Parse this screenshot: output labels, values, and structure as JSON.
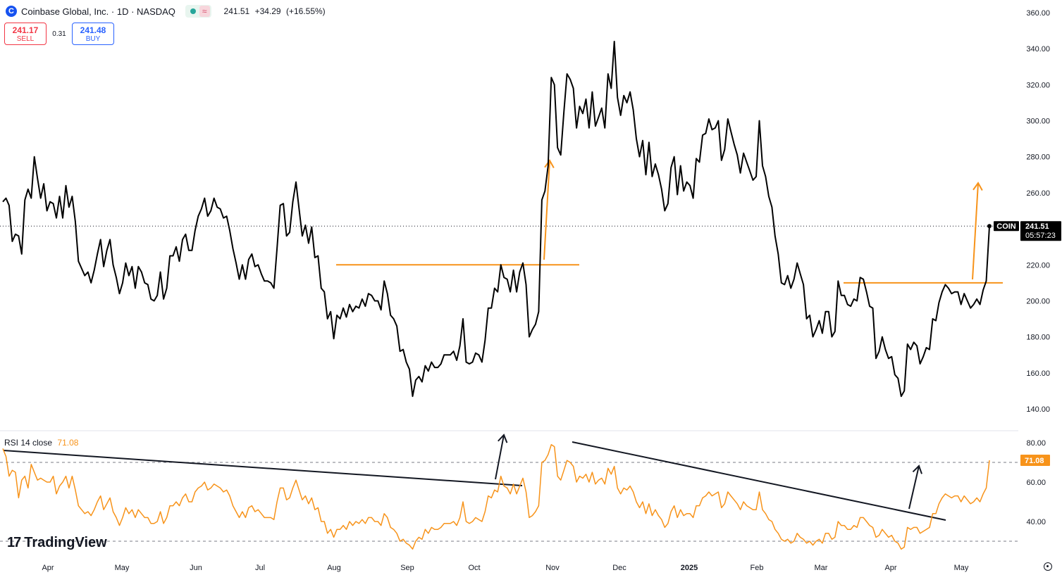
{
  "header": {
    "logo_letter": "C",
    "symbol_line": "Coinbase Global, Inc. · 1D · NASDAQ",
    "wave_glyph": "≈",
    "last": "241.51",
    "change": "+34.29",
    "change_pct": "(+16.55%)"
  },
  "trade": {
    "sell_price": "241.17",
    "sell_label": "SELL",
    "spread": "0.31",
    "buy_price": "241.48",
    "buy_label": "BUY"
  },
  "rsi_label": {
    "name": "RSI 14 close",
    "value": "71.08"
  },
  "brand": {
    "name": "TradingView",
    "mark": "17"
  },
  "colors": {
    "price_line": "#000000",
    "rsi_line": "#f7931a",
    "annotation": "#f7931a",
    "badge": "#000000"
  },
  "chart_data": [
    {
      "type": "line",
      "title": "Coinbase Global, Inc. · 1D · NASDAQ",
      "x_tick_labels": [
        "Apr",
        "May",
        "Jun",
        "Jul",
        "Aug",
        "Sep",
        "Oct",
        "Nov",
        "Dec",
        "2025",
        "Feb",
        "Mar",
        "Apr",
        "May"
      ],
      "y_ticks": [
        140,
        160,
        180,
        200,
        220,
        240,
        260,
        280,
        300,
        320,
        340,
        360
      ],
      "ylim": [
        132,
        364
      ],
      "series": [
        {
          "name": "COIN",
          "last_value": 241.51,
          "last_label": "241.51",
          "countdown": "05:57:23",
          "values": [
            255,
            257,
            253,
            233,
            237,
            236,
            226,
            256,
            262,
            257,
            280,
            268,
            257,
            265,
            250,
            255,
            254,
            246,
            258,
            246,
            264,
            252,
            258,
            244,
            222,
            218,
            214,
            216,
            210,
            217,
            226,
            234,
            219,
            228,
            234,
            220,
            213,
            204,
            210,
            221,
            214,
            219,
            207,
            219,
            216,
            210,
            209,
            201,
            200,
            203,
            216,
            201,
            207,
            225,
            225,
            230,
            222,
            234,
            237,
            228,
            228,
            239,
            247,
            251,
            257,
            247,
            250,
            257,
            252,
            251,
            246,
            247,
            239,
            229,
            221,
            212,
            220,
            212,
            223,
            226,
            219,
            220,
            215,
            211,
            211,
            210,
            207,
            229,
            253,
            254,
            236,
            238,
            255,
            266,
            251,
            236,
            242,
            232,
            241,
            224,
            225,
            207,
            205,
            190,
            194,
            179,
            192,
            190,
            196,
            191,
            198,
            194,
            197,
            196,
            201,
            197,
            204,
            203,
            200,
            200,
            195,
            211,
            204,
            192,
            190,
            186,
            172,
            173,
            166,
            162,
            147,
            156,
            158,
            155,
            164,
            161,
            166,
            163,
            163,
            165,
            170,
            170,
            170,
            172,
            167,
            175,
            190,
            166,
            165,
            166,
            171,
            170,
            166,
            178,
            196,
            196,
            207,
            205,
            220,
            213,
            212,
            205,
            217,
            205,
            216,
            221,
            209,
            180,
            184,
            187,
            194,
            256,
            261,
            275,
            324,
            320,
            285,
            281,
            305,
            326,
            323,
            318,
            296,
            308,
            304,
            312,
            296,
            316,
            297,
            302,
            307,
            296,
            326,
            318,
            344,
            313,
            303,
            314,
            310,
            316,
            306,
            290,
            280,
            289,
            270,
            288,
            269,
            276,
            270,
            262,
            250,
            254,
            274,
            280,
            259,
            275,
            261,
            266,
            264,
            257,
            279,
            277,
            292,
            293,
            301,
            295,
            296,
            300,
            278,
            284,
            301,
            294,
            287,
            281,
            271,
            282,
            277,
            272,
            267,
            269,
            300,
            275,
            269,
            258,
            252,
            236,
            226,
            210,
            209,
            214,
            207,
            212,
            221,
            215,
            209,
            190,
            192,
            180,
            184,
            189,
            182,
            194,
            194,
            180,
            183,
            211,
            203,
            203,
            198,
            197,
            201,
            200,
            213,
            212,
            205,
            197,
            196,
            168,
            172,
            180,
            173,
            168,
            169,
            159,
            157,
            147,
            150,
            176,
            173,
            177,
            175,
            165,
            169,
            174,
            173,
            190,
            189,
            199,
            205,
            209,
            207,
            204,
            205,
            205,
            198,
            204,
            200,
            196,
            198,
            201,
            198,
            206,
            211,
            241.5
          ]
        }
      ],
      "annotations": [
        {
          "kind": "horizontal-level",
          "value": 220,
          "color": "#f7931a"
        },
        {
          "kind": "horizontal-level",
          "value": 210,
          "color": "#f7931a"
        },
        {
          "kind": "up-arrow",
          "color": "#f7931a"
        },
        {
          "kind": "up-arrow",
          "color": "#f7931a"
        }
      ],
      "grid": false,
      "reference_line": "dotted at last price"
    },
    {
      "type": "line",
      "title": "RSI 14 close",
      "y_ticks": [
        40,
        60,
        80
      ],
      "ylim": [
        24,
        84
      ],
      "dashed_levels": [
        70,
        30
      ],
      "series": [
        {
          "name": "RSI 14 close",
          "last_value": 71.08,
          "last_label": "71.08",
          "values": [
            77,
            73,
            63,
            66,
            65,
            52,
            61,
            63,
            57,
            69,
            65,
            61,
            62,
            61,
            60,
            60,
            63,
            54,
            58,
            60,
            63,
            57,
            63,
            56,
            48,
            46,
            44,
            45,
            43,
            46,
            50,
            53,
            46,
            49,
            52,
            45,
            42,
            38,
            42,
            47,
            44,
            46,
            42,
            46,
            44,
            42,
            42,
            39,
            39,
            40,
            45,
            39,
            42,
            48,
            48,
            50,
            48,
            52,
            54,
            50,
            50,
            55,
            57,
            58,
            60,
            56,
            57,
            59,
            58,
            57,
            55,
            56,
            53,
            48,
            45,
            42,
            45,
            42,
            47,
            48,
            45,
            46,
            44,
            42,
            42,
            42,
            41,
            50,
            57,
            57,
            51,
            52,
            57,
            61,
            56,
            51,
            53,
            49,
            52,
            46,
            47,
            40,
            40,
            34,
            36,
            32,
            36,
            36,
            38,
            36,
            40,
            38,
            40,
            39,
            41,
            39,
            42,
            42,
            40,
            40,
            38,
            44,
            42,
            37,
            36,
            34,
            30,
            31,
            29,
            28,
            26,
            30,
            32,
            31,
            36,
            34,
            37,
            36,
            36,
            37,
            39,
            39,
            39,
            40,
            38,
            42,
            50,
            40,
            39,
            40,
            42,
            41,
            40,
            45,
            53,
            52,
            56,
            55,
            63,
            58,
            57,
            54,
            59,
            54,
            58,
            62,
            55,
            42,
            43,
            45,
            48,
            70,
            71,
            74,
            79,
            78,
            63,
            61,
            66,
            71,
            70,
            68,
            60,
            63,
            62,
            64,
            60,
            65,
            59,
            61,
            62,
            59,
            67,
            64,
            68,
            57,
            54,
            57,
            56,
            58,
            55,
            50,
            47,
            50,
            44,
            49,
            43,
            46,
            43,
            41,
            37,
            39,
            45,
            48,
            42,
            46,
            43,
            44,
            44,
            42,
            48,
            48,
            52,
            53,
            55,
            53,
            54,
            55,
            47,
            49,
            55,
            53,
            51,
            49,
            46,
            50,
            48,
            47,
            46,
            46,
            55,
            46,
            44,
            41,
            40,
            36,
            34,
            31,
            30,
            31,
            29,
            30,
            34,
            32,
            31,
            29,
            30,
            28,
            30,
            31,
            29,
            34,
            34,
            31,
            32,
            40,
            38,
            38,
            36,
            36,
            38,
            37,
            42,
            42,
            40,
            38,
            37,
            32,
            33,
            36,
            34,
            32,
            33,
            30,
            29,
            26,
            27,
            37,
            36,
            37,
            37,
            34,
            35,
            36,
            37,
            44,
            44,
            49,
            52,
            54,
            53,
            52,
            53,
            53,
            50,
            53,
            51,
            49,
            50,
            52,
            50,
            54,
            57,
            71.08
          ]
        }
      ],
      "trendlines": [
        {
          "kind": "falling-trendline",
          "color": "#000000"
        },
        {
          "kind": "falling-trendline",
          "color": "#000000"
        },
        {
          "kind": "up-arrow",
          "color": "#000000"
        },
        {
          "kind": "up-arrow",
          "color": "#000000"
        }
      ]
    }
  ]
}
